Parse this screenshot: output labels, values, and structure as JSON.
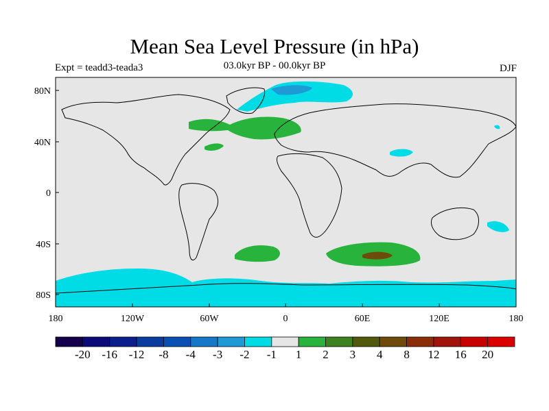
{
  "title": "Mean Sea Level Pressure (in hPa)",
  "subtitle": "03.0kyr BP - 00.0kyr BP",
  "expt_label": "Expt = teadd3-teada3",
  "season": "DJF",
  "axes": {
    "x_ticks": [
      "180",
      "120W",
      "60W",
      "0",
      "60E",
      "120E",
      "180"
    ],
    "y_ticks": [
      "80N",
      "40N",
      "0",
      "40S",
      "80S"
    ]
  },
  "colorbar": {
    "labels": [
      "-20",
      "-16",
      "-12",
      "-8",
      "-4",
      "-3",
      "-2",
      "-1",
      "1",
      "2",
      "3",
      "4",
      "8",
      "12",
      "16",
      "20"
    ],
    "colors": [
      "#14004a",
      "#0a0a78",
      "#0a1e8c",
      "#0a3ca0",
      "#0a50b4",
      "#1478c8",
      "#1e9bd7",
      "#00dce6",
      "#e6e6e6",
      "#28b43c",
      "#3c821e",
      "#505a0a",
      "#6e4b0a",
      "#8c2d0a",
      "#a0140a",
      "#c80000",
      "#dc0000"
    ]
  },
  "colors": {
    "background": "#e6e6e6",
    "coast": "#000000",
    "neg_light": "#00dce6",
    "neg_mid": "#1e9bd7",
    "pos_light": "#28b43c",
    "pos_mid": "#3c821e",
    "pos_dark": "#6e4b0a"
  }
}
